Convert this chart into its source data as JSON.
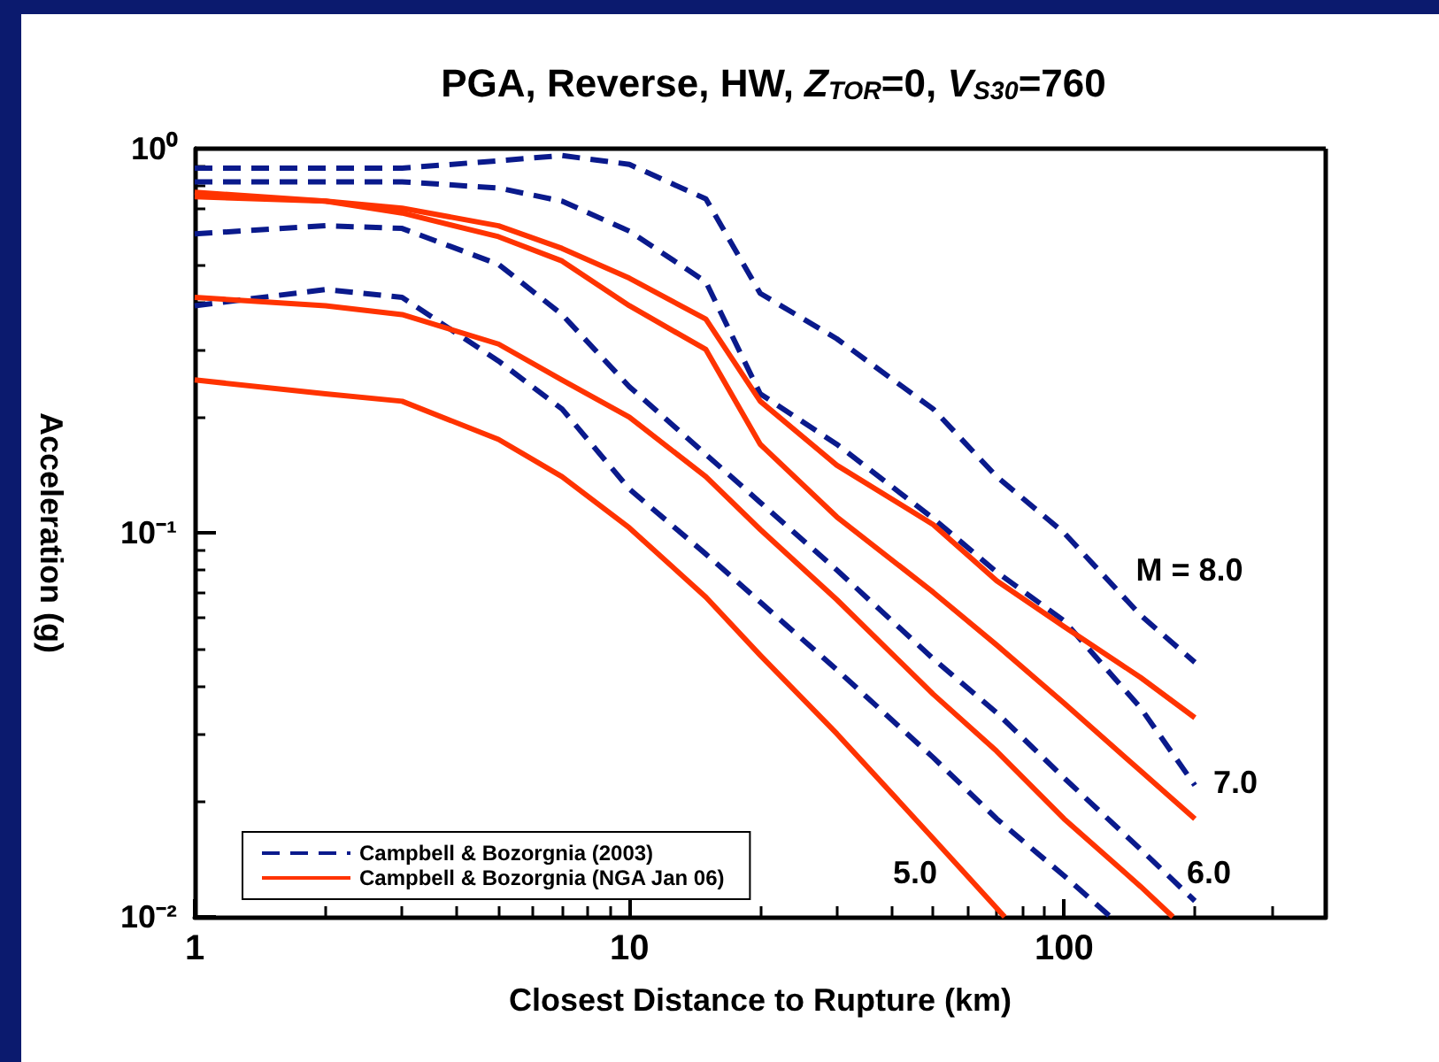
{
  "chart_data": {
    "type": "line",
    "title": "PGA, Reverse, HW, Z$_{TOR}$=0, V$_{S30}$=760",
    "xlabel": "Closest Distance to Rupture (km)",
    "ylabel": "Acceleration (g)",
    "log": "xy",
    "grid": false,
    "legend": "bottom left",
    "marker": "none",
    "xlim": [
      1,
      400
    ],
    "xticks": [
      1,
      10,
      100
    ],
    "ylim": [
      0.01,
      1
    ],
    "yticks": [
      {
        "value": 0.01,
        "label": "10⁻²"
      },
      {
        "value": 0.1,
        "label": "10⁻¹"
      },
      {
        "value": 1,
        "label": "10⁰"
      }
    ],
    "series": [
      {
        "name": "Campbell & Bozorgnia (2003)",
        "color": "#0a1a8c",
        "line_style": "dashed",
        "x": [
          1,
          2,
          3,
          5,
          7,
          10,
          15,
          20,
          30,
          50,
          70,
          100,
          150,
          200
        ],
        "values": [
          0.89,
          0.89,
          0.89,
          0.93,
          0.96,
          0.91,
          0.74,
          0.42,
          0.32,
          0.21,
          0.14,
          0.1,
          0.061,
          0.046
        ]
      },
      {
        "color": "#0a1a8c",
        "line_style": "dashed",
        "x": [
          1,
          2,
          3,
          5,
          7,
          10,
          15,
          20,
          30,
          50,
          70,
          100,
          150,
          200
        ],
        "values": [
          0.82,
          0.82,
          0.82,
          0.79,
          0.73,
          0.61,
          0.45,
          0.23,
          0.17,
          0.109,
          0.079,
          0.059,
          0.035,
          0.022
        ]
      },
      {
        "color": "#0a1a8c",
        "line_style": "dashed",
        "x": [
          1,
          2,
          3,
          5,
          7,
          10,
          15,
          20,
          30,
          50,
          70,
          100,
          150,
          200
        ],
        "values": [
          0.6,
          0.63,
          0.62,
          0.5,
          0.37,
          0.24,
          0.16,
          0.12,
          0.08,
          0.047,
          0.034,
          0.023,
          0.015,
          0.011
        ]
      },
      {
        "color": "#0a1a8c",
        "line_style": "dashed",
        "x": [
          1,
          2,
          3,
          5,
          7,
          10,
          15,
          20,
          30,
          50,
          70,
          100,
          128
        ],
        "values": [
          0.39,
          0.43,
          0.41,
          0.28,
          0.21,
          0.13,
          0.088,
          0.066,
          0.044,
          0.026,
          0.018,
          0.0128,
          0.01
        ]
      },
      {
        "name": "Campbell & Bozorgnia (NGA Jan 06)",
        "color": "#ff3300",
        "line_style": "solid",
        "x": [
          1,
          2,
          3,
          5,
          7,
          10,
          15,
          20,
          30,
          50,
          70,
          100,
          150,
          200
        ],
        "values": [
          0.77,
          0.73,
          0.7,
          0.63,
          0.55,
          0.46,
          0.36,
          0.22,
          0.15,
          0.105,
          0.075,
          0.057,
          0.042,
          0.033
        ]
      },
      {
        "color": "#ff3300",
        "line_style": "solid",
        "x": [
          1,
          2,
          3,
          5,
          7,
          10,
          15,
          20,
          30,
          50,
          70,
          100,
          150,
          200
        ],
        "values": [
          0.75,
          0.73,
          0.68,
          0.59,
          0.51,
          0.39,
          0.3,
          0.17,
          0.11,
          0.07,
          0.051,
          0.036,
          0.024,
          0.018
        ]
      },
      {
        "color": "#ff3300",
        "line_style": "solid",
        "x": [
          1,
          2,
          3,
          5,
          7,
          10,
          15,
          20,
          30,
          50,
          70,
          100,
          150,
          178
        ],
        "values": [
          0.41,
          0.39,
          0.37,
          0.31,
          0.25,
          0.2,
          0.14,
          0.102,
          0.067,
          0.038,
          0.027,
          0.018,
          0.012,
          0.01
        ]
      },
      {
        "color": "#ff3300",
        "line_style": "solid",
        "x": [
          1,
          2,
          3,
          5,
          7,
          10,
          15,
          20,
          30,
          50,
          73
        ],
        "values": [
          0.25,
          0.23,
          0.22,
          0.175,
          0.14,
          0.103,
          0.068,
          0.048,
          0.03,
          0.016,
          0.01
        ]
      }
    ],
    "annotations": [
      "M = 8.0",
      "7.0",
      "6.0",
      "5.0"
    ]
  }
}
